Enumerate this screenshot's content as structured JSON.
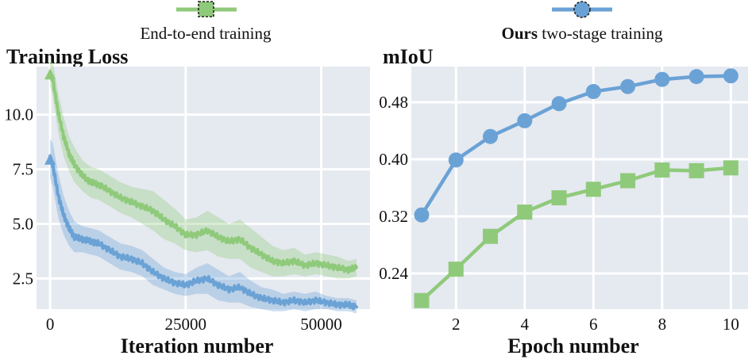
{
  "legend": {
    "items": [
      {
        "name_plain": "End-to-end training",
        "name_bold": "",
        "color": "#8fca7a",
        "marker": "square"
      },
      {
        "name_plain": " two-stage training",
        "name_bold": "Ours",
        "color": "#6aa2d6",
        "marker": "circle"
      }
    ]
  },
  "colors": {
    "green": "#8fca7a",
    "blue": "#6aa2d6",
    "panel_bg": "#e5e9f0",
    "grid": "#ffffff"
  },
  "chart_data": [
    {
      "type": "line",
      "title": "Training Loss",
      "xlabel": "Iteration number",
      "ylabel": "",
      "xlim": [
        -2500,
        59000
      ],
      "ylim": [
        1.1,
        12.2
      ],
      "xticks": [
        0,
        25000,
        50000
      ],
      "xtick_labels": [
        "0",
        "25000",
        "50000"
      ],
      "yticks": [
        2.5,
        5.0,
        7.5,
        10.0
      ],
      "ytick_labels": [
        "2.5",
        "5.0",
        "7.5",
        "10.0"
      ],
      "grid": true,
      "shaded_band": true,
      "series": [
        {
          "name": "End-to-end training",
          "color": "#8fca7a",
          "x": [
            0,
            500,
            1500,
            2500,
            3500,
            4500,
            6000,
            7500,
            9000,
            11000,
            13000,
            15000,
            17000,
            19000,
            21000,
            23000,
            25000,
            27000,
            29000,
            31000,
            33000,
            35000,
            37000,
            39000,
            41000,
            43000,
            45000,
            47000,
            49000,
            51000,
            53000,
            55000,
            56500
          ],
          "values": [
            11.9,
            11.6,
            10.1,
            9.0,
            8.2,
            7.7,
            7.2,
            6.9,
            6.8,
            6.5,
            6.2,
            6.0,
            5.8,
            5.6,
            5.2,
            4.9,
            4.5,
            4.5,
            4.7,
            4.4,
            4.2,
            4.3,
            3.9,
            3.6,
            3.3,
            3.2,
            3.3,
            3.1,
            3.2,
            3.1,
            3.0,
            2.9,
            3.0
          ],
          "band_halfwidth": [
            0.6,
            0.8,
            0.9,
            0.9,
            0.8,
            0.8,
            0.7,
            0.7,
            0.7,
            0.7,
            0.7,
            0.7,
            0.8,
            0.9,
            0.9,
            0.8,
            0.7,
            0.8,
            0.9,
            0.9,
            0.8,
            0.9,
            0.9,
            0.8,
            0.7,
            0.6,
            0.6,
            0.5,
            0.5,
            0.5,
            0.5,
            0.4,
            0.4
          ]
        },
        {
          "name": "Ours two-stage training",
          "color": "#6aa2d6",
          "x": [
            0,
            500,
            1500,
            2500,
            3500,
            4500,
            6000,
            7500,
            9000,
            11000,
            13000,
            15000,
            17000,
            19000,
            21000,
            23000,
            25000,
            27000,
            29000,
            31000,
            33000,
            35000,
            37000,
            39000,
            41000,
            43000,
            45000,
            47000,
            49000,
            51000,
            53000,
            55000,
            56500
          ],
          "values": [
            8.0,
            7.7,
            6.3,
            5.4,
            4.8,
            4.4,
            4.3,
            4.2,
            4.1,
            3.8,
            3.5,
            3.4,
            3.2,
            2.8,
            2.5,
            2.3,
            2.2,
            2.4,
            2.5,
            2.2,
            2.0,
            2.1,
            1.8,
            1.6,
            1.5,
            1.4,
            1.5,
            1.4,
            1.5,
            1.4,
            1.3,
            1.3,
            1.2
          ],
          "band_halfwidth": [
            0.9,
            1.0,
            1.0,
            0.9,
            0.8,
            0.7,
            0.6,
            0.6,
            0.6,
            0.6,
            0.6,
            0.6,
            0.6,
            0.6,
            0.5,
            0.5,
            0.5,
            0.6,
            0.7,
            0.7,
            0.6,
            0.7,
            0.6,
            0.5,
            0.5,
            0.4,
            0.4,
            0.4,
            0.4,
            0.3,
            0.3,
            0.3,
            0.3
          ]
        }
      ]
    },
    {
      "type": "line",
      "title": "mIoU",
      "xlabel": "Epoch number",
      "ylabel": "",
      "xlim": [
        0.7,
        10.5
      ],
      "ylim": [
        0.19,
        0.53
      ],
      "xticks": [
        2,
        4,
        6,
        8,
        10
      ],
      "xtick_labels": [
        "2",
        "4",
        "6",
        "8",
        "10"
      ],
      "yticks": [
        0.24,
        0.32,
        0.4,
        0.48
      ],
      "ytick_labels": [
        "0.24",
        "0.32",
        "0.40",
        "0.48"
      ],
      "grid": true,
      "series": [
        {
          "name": "End-to-end training",
          "color": "#8fca7a",
          "marker": "square",
          "x": [
            1,
            2,
            3,
            4,
            5,
            6,
            7,
            8,
            9,
            10
          ],
          "values": [
            0.202,
            0.246,
            0.292,
            0.326,
            0.346,
            0.358,
            0.37,
            0.385,
            0.384,
            0.388
          ]
        },
        {
          "name": "Ours two-stage training",
          "color": "#6aa2d6",
          "marker": "circle",
          "x": [
            1,
            2,
            3,
            4,
            5,
            6,
            7,
            8,
            9,
            10
          ],
          "values": [
            0.322,
            0.399,
            0.432,
            0.454,
            0.478,
            0.495,
            0.502,
            0.512,
            0.516,
            0.517
          ]
        }
      ]
    }
  ]
}
